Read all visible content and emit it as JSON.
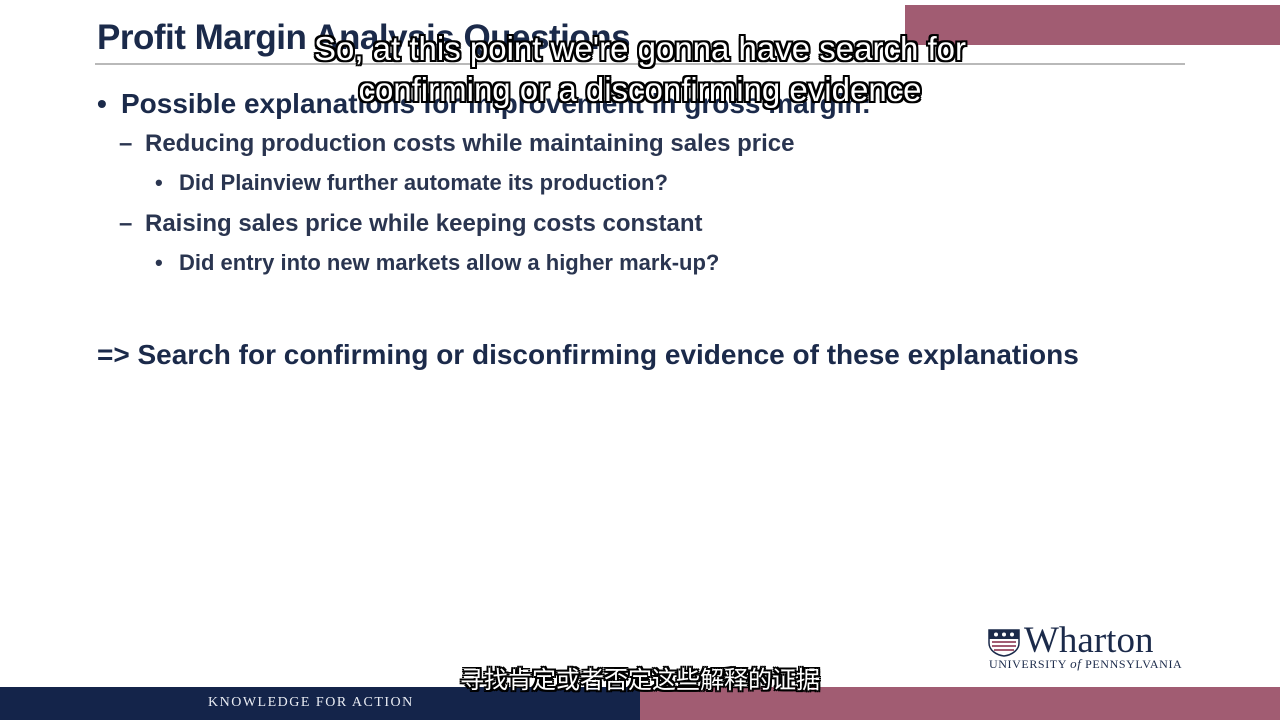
{
  "slide": {
    "title": "Profit Margin Analysis Questions",
    "bullets": [
      {
        "text": "Possible explanations for improvement in gross margin:",
        "children": [
          {
            "text": "Reducing production costs while maintaining sales price",
            "children": [
              "Did Plainview further automate its production?"
            ]
          },
          {
            "text": "Raising sales price while keeping costs constant",
            "children": [
              "Did entry into new markets allow a higher mark-up?"
            ]
          }
        ]
      }
    ],
    "conclusion": "=> Search for confirming or disconfirming evidence of these explanations"
  },
  "logo": {
    "name": "Wharton",
    "university_prefix": "UNIVERSITY",
    "university_of": "of",
    "university_suffix": "PENNSYLVANIA",
    "icon": "penn-shield-icon"
  },
  "footer": {
    "tagline": "KNOWLEDGE FOR ACTION"
  },
  "subtitles": {
    "english": "So, at this point we're gonna have search for confirming or a disconfirming evidence",
    "chinese": "寻找肯定或者否定这些解释的证据"
  },
  "colors": {
    "navy": "#14244a",
    "accent": "#a15c72",
    "text": "#1b2a4a"
  }
}
